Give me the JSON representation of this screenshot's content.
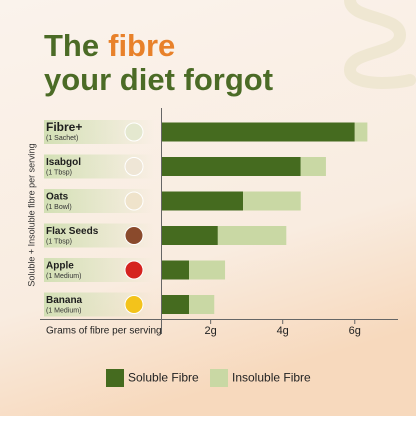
{
  "chart_data": {
    "type": "stacked-bar-horizontal",
    "title": [
      "The",
      "fibre",
      "your diet forgot"
    ],
    "categories": [
      "Fibre+",
      "Isabgol",
      "Oats",
      "Flax Seeds",
      "Apple",
      "Banana"
    ],
    "servings": [
      "(1 Sachet)",
      "(1 Tbsp)",
      "(1 Bowl)",
      "(1 Tbsp)",
      "(1 Medium)",
      "(1 Medium)"
    ],
    "series": [
      {
        "name": "Soluble Fibre",
        "color": "#456b1f",
        "values": [
          6,
          4.5,
          2.9,
          2.2,
          1.4,
          1.4
        ]
      },
      {
        "name": "Insoluble Fibre",
        "color": "#c9d8a4",
        "values": [
          0.35,
          0.7,
          1.6,
          1.9,
          1,
          0.7
        ]
      }
    ],
    "xlim": [
      0.65,
      7.2
    ],
    "xticks": [
      {
        "value": 2,
        "label": "2g"
      },
      {
        "value": 4,
        "label": "4g"
      },
      {
        "value": 6,
        "label": "6g"
      }
    ],
    "xlabel": "Grams of fibre per serving",
    "ylabel": "Soluble + Insoluble fibre per serving",
    "legend": "bottom"
  }
}
